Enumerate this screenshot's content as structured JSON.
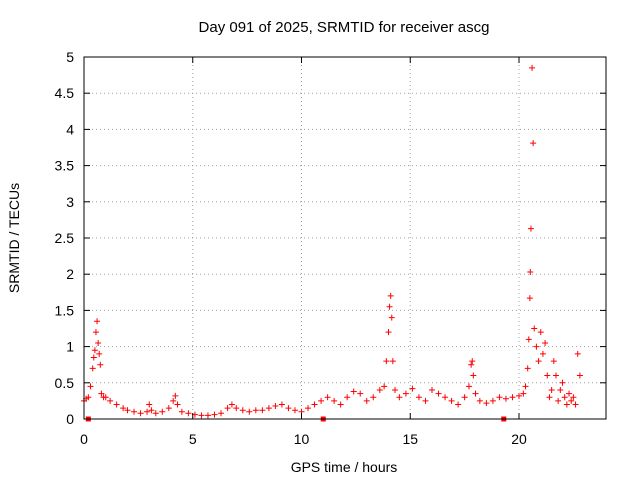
{
  "chart_data": {
    "type": "scatter",
    "title": "Day 091 of 2025, SRMTID for receiver ascg",
    "xlabel": "GPS time / hours",
    "ylabel": "SRMTID / TECUs",
    "xlim": [
      0,
      24
    ],
    "ylim": [
      0,
      5
    ],
    "xticks": [
      0,
      5,
      10,
      15,
      20
    ],
    "yticks": [
      0,
      0.5,
      1,
      1.5,
      2,
      2.5,
      3,
      3.5,
      4,
      4.5,
      5
    ],
    "xtick_labels": [
      "0",
      "5",
      "10",
      "15",
      "20"
    ],
    "ytick_labels": [
      "0",
      "0.5",
      "1",
      "1.5",
      "2",
      "2.5",
      "3",
      "3.5",
      "4",
      "4.5",
      "5"
    ],
    "grid": true,
    "marker": "+",
    "color": "#ff0000",
    "series": [
      {
        "name": "SRMTID",
        "x": [
          0.0,
          0.1,
          0.2,
          0.3,
          0.4,
          0.45,
          0.5,
          0.55,
          0.6,
          0.65,
          0.7,
          0.75,
          0.8,
          0.9,
          1.0,
          1.2,
          1.5,
          1.8,
          2.0,
          2.3,
          2.6,
          2.9,
          3.0,
          3.1,
          3.3,
          3.6,
          3.9,
          4.1,
          4.2,
          4.3,
          4.5,
          4.8,
          5.1,
          5.4,
          5.7,
          6.0,
          6.3,
          6.6,
          6.8,
          7.0,
          7.3,
          7.6,
          7.9,
          8.2,
          8.5,
          8.8,
          9.1,
          9.4,
          9.7,
          10.0,
          10.3,
          10.6,
          10.9,
          11.2,
          11.5,
          11.8,
          12.1,
          12.4,
          12.7,
          13.0,
          13.3,
          13.6,
          13.8,
          13.9,
          14.0,
          14.05,
          14.1,
          14.15,
          14.2,
          14.3,
          14.5,
          14.8,
          15.1,
          15.4,
          15.7,
          16.0,
          16.3,
          16.6,
          16.9,
          17.2,
          17.5,
          17.7,
          17.8,
          17.85,
          17.9,
          18.0,
          18.2,
          18.5,
          18.8,
          19.1,
          19.4,
          19.7,
          20.0,
          20.2,
          20.3,
          20.4,
          20.45,
          20.5,
          20.52,
          20.55,
          20.6,
          20.65,
          20.7,
          20.8,
          20.9,
          21.0,
          21.1,
          21.2,
          21.3,
          21.4,
          21.5,
          21.6,
          21.7,
          21.8,
          21.9,
          22.0,
          22.1,
          22.2,
          22.3,
          22.4,
          22.5,
          22.6,
          22.7,
          22.8,
          0.2,
          11.0,
          19.3
        ],
        "y": [
          0.25,
          0.28,
          0.3,
          0.45,
          0.7,
          0.85,
          0.95,
          1.2,
          1.35,
          1.05,
          0.9,
          0.75,
          0.35,
          0.3,
          0.3,
          0.25,
          0.2,
          0.15,
          0.12,
          0.1,
          0.08,
          0.1,
          0.2,
          0.12,
          0.08,
          0.1,
          0.15,
          0.25,
          0.32,
          0.2,
          0.1,
          0.08,
          0.06,
          0.05,
          0.05,
          0.06,
          0.08,
          0.15,
          0.2,
          0.15,
          0.12,
          0.1,
          0.12,
          0.12,
          0.15,
          0.18,
          0.2,
          0.15,
          0.12,
          0.1,
          0.15,
          0.2,
          0.25,
          0.3,
          0.25,
          0.2,
          0.3,
          0.38,
          0.35,
          0.25,
          0.3,
          0.4,
          0.45,
          0.8,
          1.2,
          1.55,
          1.7,
          1.4,
          0.8,
          0.4,
          0.3,
          0.35,
          0.42,
          0.3,
          0.25,
          0.4,
          0.35,
          0.3,
          0.25,
          0.2,
          0.3,
          0.45,
          0.75,
          0.8,
          0.6,
          0.35,
          0.25,
          0.22,
          0.25,
          0.3,
          0.28,
          0.3,
          0.32,
          0.35,
          0.45,
          0.7,
          1.1,
          1.67,
          2.03,
          2.63,
          4.85,
          3.81,
          1.25,
          1.0,
          0.8,
          1.2,
          0.9,
          1.05,
          0.6,
          0.3,
          0.4,
          0.8,
          0.6,
          0.25,
          0.4,
          0.5,
          0.3,
          0.2,
          0.35,
          0.25,
          0.3,
          0.2,
          0.9,
          0.6,
          0.0,
          0.0,
          0.0
        ]
      }
    ]
  }
}
